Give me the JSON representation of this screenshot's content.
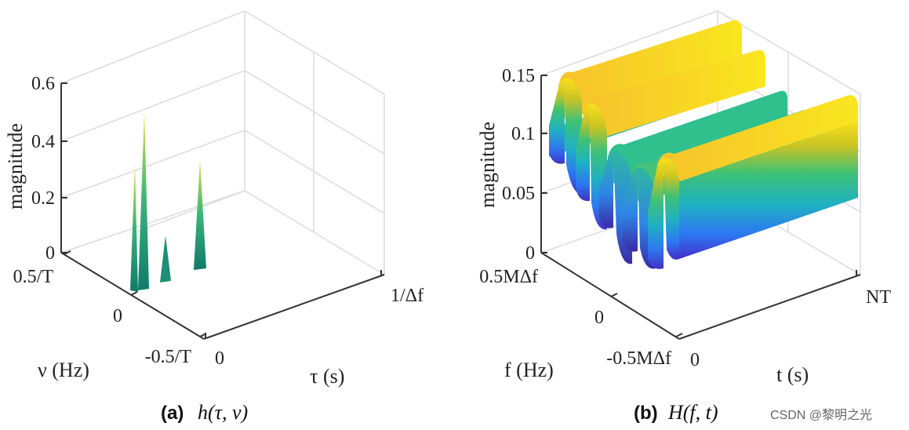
{
  "chart_data": [
    {
      "type": "surface3d",
      "panel_label": "(a)",
      "title": "h(τ, ν)",
      "zlabel": "magnitude",
      "ylabel": "ν (Hz)",
      "xlabel": "τ (s)",
      "zticks": [
        "0",
        "0.2",
        "0.4",
        "0.6"
      ],
      "zlim": [
        0,
        0.6
      ],
      "nu_ticks": [
        "0.5/T",
        "0",
        "-0.5/T"
      ],
      "tau_ticks": [
        "0",
        "1/Δf"
      ],
      "peaks": [
        {
          "tau": 0.0,
          "nu": 0.02,
          "magnitude": 0.3,
          "color": "#9ad24b"
        },
        {
          "tau": 0.05,
          "nu": 0.05,
          "magnitude": 0.5,
          "color": "#d6e544"
        },
        {
          "tau": 0.15,
          "nu": 0.1,
          "magnitude": 0.06,
          "color": "#2c9a7a"
        },
        {
          "tau": 0.28,
          "nu": 0.28,
          "magnitude": 0.32,
          "color": "#5fbf63"
        }
      ]
    },
    {
      "type": "surface3d",
      "panel_label": "(b)",
      "title": "H(f, t)",
      "zlabel": "magnitude",
      "ylabel": "f (Hz)",
      "xlabel": "t (s)",
      "zticks": [
        "0",
        "0.05",
        "0.1",
        "0.15"
      ],
      "zlim": [
        0,
        0.15
      ],
      "f_ticks": [
        "0.5MΔf",
        "0",
        "-0.5MΔf"
      ],
      "t_ticks": [
        "0",
        "NT"
      ],
      "ridges": [
        {
          "f": 0.0,
          "magnitude": 0.155
        },
        {
          "f": 0.1,
          "magnitude": 0.145
        },
        {
          "f": 0.2,
          "magnitude": 0.11
        },
        {
          "f": 0.3,
          "magnitude": 0.105
        },
        {
          "f": 0.4,
          "magnitude": 0.12
        }
      ],
      "colormap": [
        "#3e26a8",
        "#2d78f2",
        "#1fb2c1",
        "#39c06e",
        "#b5c62a",
        "#f9bb26",
        "#f9e11b"
      ]
    }
  ],
  "watermark": "CSDN @黎明之光"
}
